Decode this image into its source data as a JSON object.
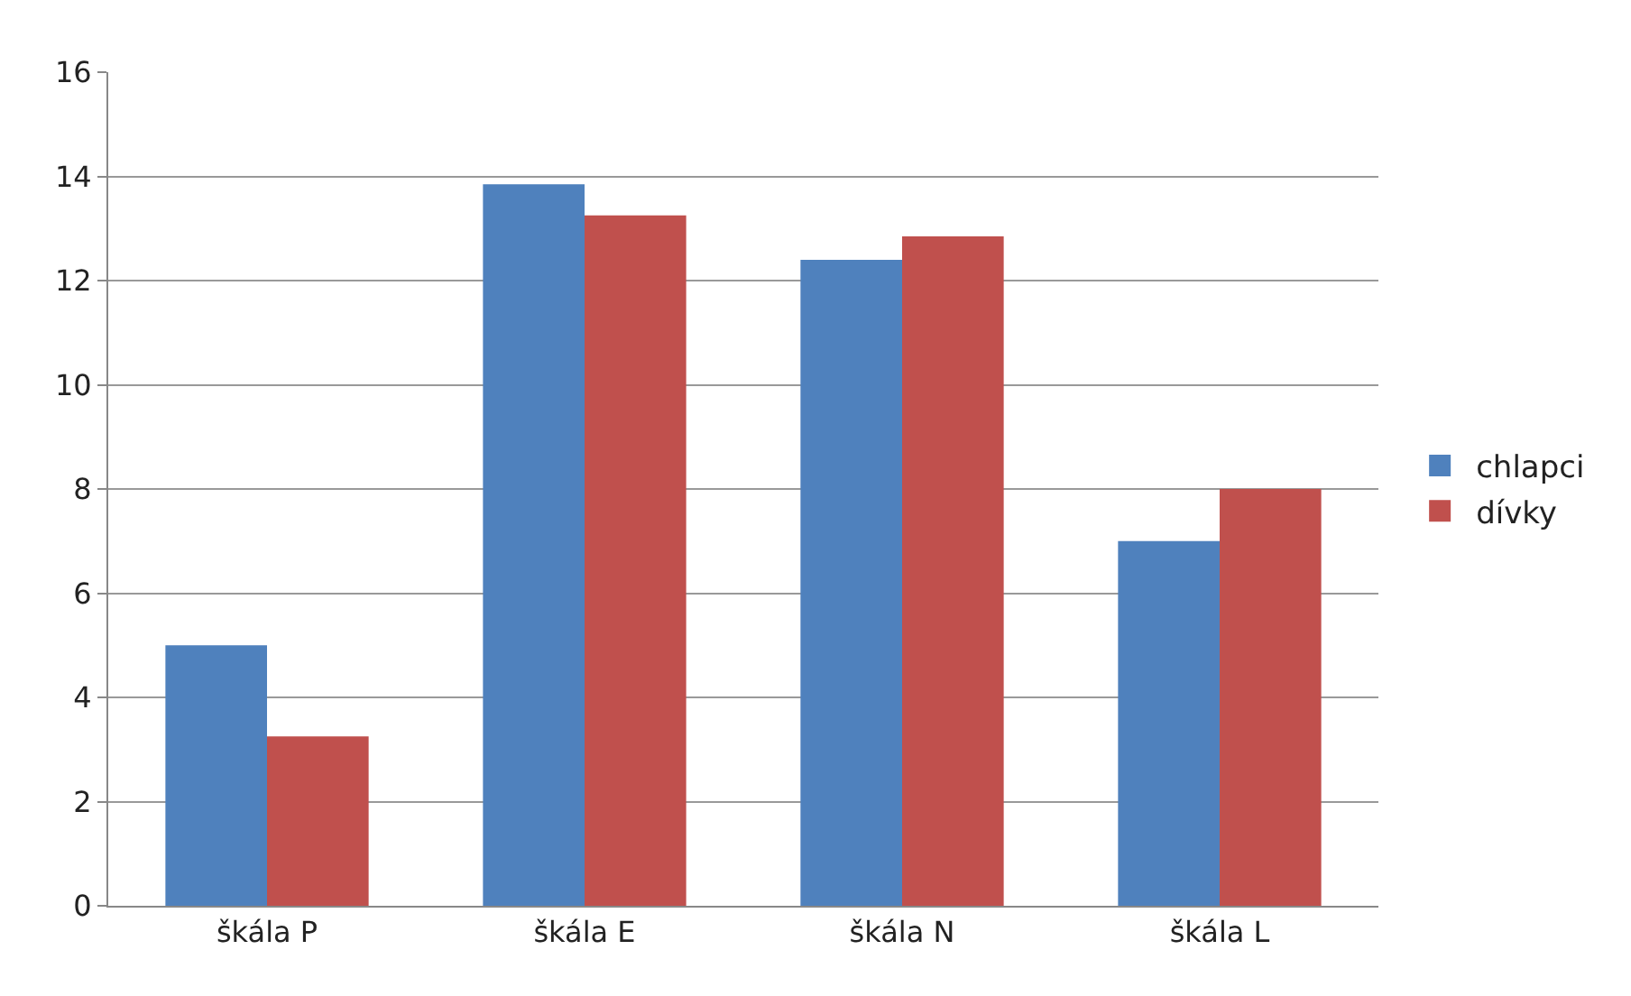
{
  "chart_data": {
    "type": "bar",
    "categories": [
      "škála P",
      "škála E",
      "škála N",
      "škála L"
    ],
    "series": [
      {
        "name": "chlapci",
        "color": "#4f81bd",
        "values": [
          5.0,
          13.85,
          12.4,
          7.0
        ]
      },
      {
        "name": "dívky",
        "color": "#c0504d",
        "values": [
          3.25,
          13.25,
          12.85,
          8.0
        ]
      }
    ],
    "ylim": [
      0,
      16
    ],
    "yticks": [
      0,
      2,
      4,
      6,
      8,
      10,
      12,
      14,
      16
    ],
    "grid": "y",
    "legend": "right"
  }
}
